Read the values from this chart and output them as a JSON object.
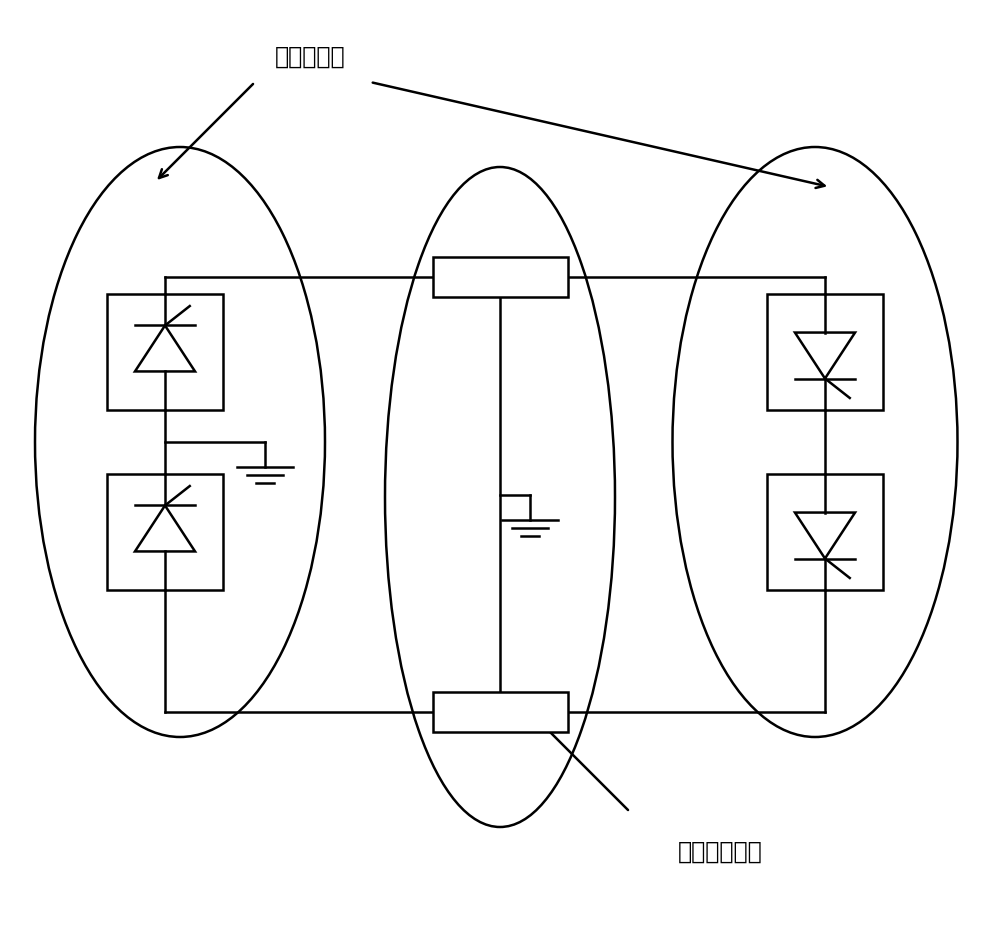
{
  "label_converter_loss": "换流站损耗",
  "label_line_loss": "输电线路损耗",
  "bg_color": "#ffffff",
  "line_color": "#000000",
  "figsize": [
    10.0,
    9.27
  ],
  "dpi": 100,
  "lw": 1.8,
  "font_size": 17
}
